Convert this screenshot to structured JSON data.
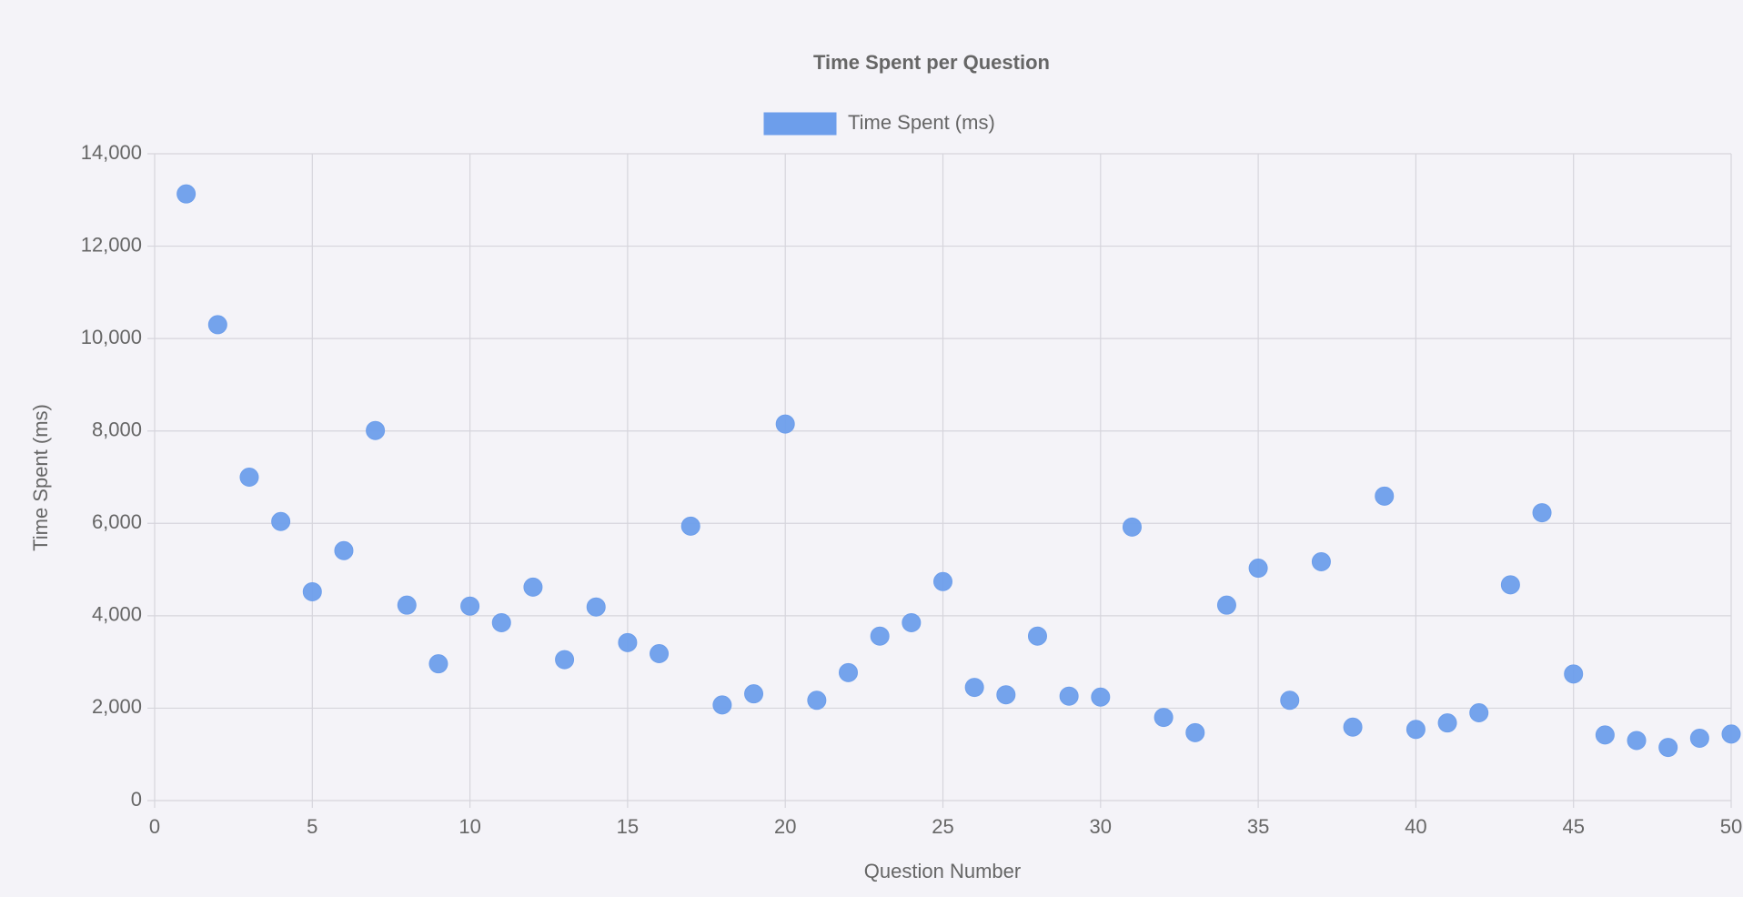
{
  "chart_data": {
    "type": "scatter",
    "title": "Time Spent per Question",
    "x_label": "Question Number",
    "y_label": "Time Spent (ms)",
    "x": [
      1,
      2,
      3,
      4,
      5,
      6,
      7,
      8,
      9,
      10,
      11,
      12,
      13,
      14,
      15,
      16,
      17,
      18,
      19,
      20,
      21,
      22,
      23,
      24,
      25,
      26,
      27,
      28,
      29,
      30,
      31,
      32,
      33,
      34,
      35,
      36,
      37,
      38,
      39,
      40,
      41,
      42,
      43,
      44,
      45,
      46,
      47,
      48,
      49,
      50
    ],
    "series": [
      {
        "name": "Time Spent (ms)",
        "color": "#6d9eeb",
        "values": [
          13130,
          10300,
          7000,
          6040,
          4520,
          5410,
          8010,
          4230,
          2960,
          4210,
          3850,
          4620,
          3050,
          4190,
          3420,
          3180,
          5940,
          2070,
          2310,
          8150,
          2170,
          2770,
          3560,
          3850,
          4740,
          2450,
          2290,
          3560,
          2260,
          2240,
          5920,
          1800,
          1470,
          4230,
          5030,
          2170,
          5170,
          1590,
          6590,
          1540,
          1680,
          1900,
          4670,
          6230,
          2740,
          1420,
          1300,
          1150,
          1350,
          1440
        ]
      }
    ],
    "xlim": [
      0,
      50
    ],
    "xticks": [
      0,
      5,
      10,
      15,
      20,
      25,
      30,
      35,
      40,
      45,
      50
    ],
    "ylim": [
      0,
      14000
    ],
    "yticks": [
      0,
      {
        "value": 2000,
        "label": "2,000"
      },
      {
        "value": 4000,
        "label": "4,000"
      },
      {
        "value": 6000,
        "label": "6,000"
      },
      {
        "value": 8000,
        "label": "8,000"
      },
      {
        "value": 10000,
        "label": "10,000"
      },
      {
        "value": 12000,
        "label": "12,000"
      },
      {
        "value": 14000,
        "label": "14,000"
      }
    ],
    "grid": true,
    "legend": "top"
  }
}
